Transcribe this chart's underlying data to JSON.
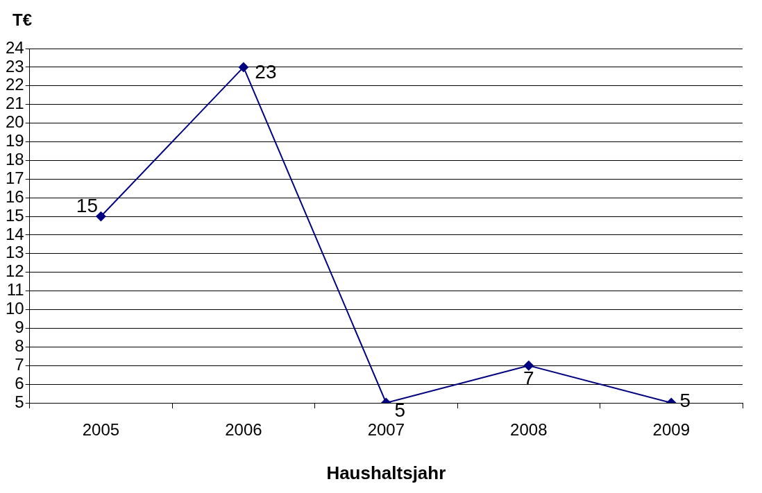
{
  "chart_data": {
    "type": "line",
    "ylabel": "T€",
    "xlabel": "Haushaltsjahr",
    "categories": [
      "2005",
      "2006",
      "2007",
      "2008",
      "2009"
    ],
    "series": [
      {
        "color": "#000080",
        "values": [
          15,
          23,
          5,
          7,
          5
        ]
      }
    ],
    "ylim": [
      5,
      24
    ],
    "yticks": [
      5,
      6,
      7,
      8,
      9,
      10,
      11,
      12,
      13,
      14,
      15,
      16,
      17,
      18,
      19,
      20,
      21,
      22,
      23,
      24
    ],
    "grid": "y",
    "marker": "diamond",
    "line_style": "solid",
    "data_labels": true,
    "legend": false
  }
}
